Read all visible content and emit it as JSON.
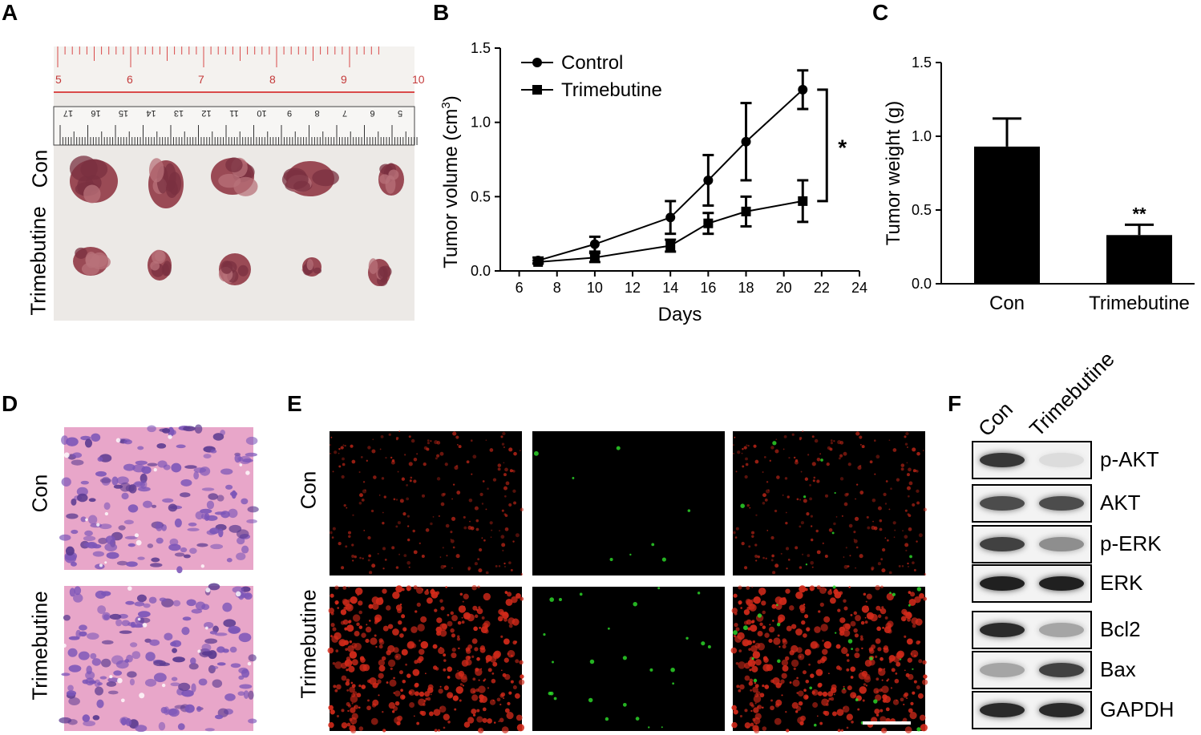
{
  "panels": {
    "a": {
      "letter": "A",
      "con_label": "Con",
      "tri_label": "Trimebutine",
      "ruler_upper": [
        "5",
        "6",
        "7",
        "8",
        "9",
        "10"
      ],
      "ruler_lower": [
        "17",
        "16",
        "15",
        "14",
        "13",
        "12",
        "11",
        "10",
        "9",
        "8",
        "7",
        "6",
        "5"
      ]
    },
    "b": {
      "letter": "B"
    },
    "c": {
      "letter": "C"
    },
    "d": {
      "letter": "D",
      "con_label": "Con",
      "tri_label": "Trimebutine"
    },
    "e": {
      "letter": "E",
      "con_label": "Con",
      "tri_label": "Trimebutine"
    },
    "f": {
      "letter": "F",
      "col_con": "Con",
      "col_tri": "Trimebutine",
      "bands": [
        {
          "label": "p-AKT",
          "con": 0.85,
          "tri": 0.1
        },
        {
          "label": "AKT",
          "con": 0.75,
          "tri": 0.75
        },
        {
          "label": "p-ERK",
          "con": 0.8,
          "tri": 0.45
        },
        {
          "label": "ERK",
          "con": 0.95,
          "tri": 0.95
        },
        {
          "label": "Bcl2",
          "con": 0.9,
          "tri": 0.35
        },
        {
          "label": "Bax",
          "con": 0.35,
          "tri": 0.8
        },
        {
          "label": "GAPDH",
          "con": 0.9,
          "tri": 0.9
        }
      ]
    }
  },
  "colors": {
    "he_pink": "#e8a6c9",
    "he_purple": "#7b55b8",
    "fluor_red": "#d42a1a",
    "fluor_green": "#2ee02a",
    "tissue": "#9a4a55"
  },
  "chart_data": [
    {
      "type": "line",
      "xlabel": "Days",
      "ylabel": "Tumor volume (cm",
      "ylabel_sup": "3",
      "ylabel_close": ")",
      "xlim": [
        5,
        24
      ],
      "ylim": [
        0,
        1.5
      ],
      "xticks": [
        "6",
        "8",
        "10",
        "12",
        "14",
        "16",
        "18",
        "20",
        "22",
        "24"
      ],
      "yticks": [
        "0.0",
        "0.5",
        "1.0",
        "1.5"
      ],
      "annotation": "*",
      "legend": "top-left",
      "series": [
        {
          "name": "Control",
          "marker": "circle",
          "x": [
            7,
            10,
            14,
            16,
            18,
            21
          ],
          "y": [
            0.07,
            0.18,
            0.36,
            0.61,
            0.87,
            1.22
          ],
          "err": [
            0.02,
            0.05,
            0.11,
            0.17,
            0.26,
            0.13
          ]
        },
        {
          "name": "Trimebutine",
          "marker": "square",
          "x": [
            7,
            10,
            14,
            16,
            18,
            21
          ],
          "y": [
            0.06,
            0.09,
            0.17,
            0.32,
            0.4,
            0.47
          ],
          "err": [
            0.01,
            0.03,
            0.04,
            0.07,
            0.1,
            0.14
          ]
        }
      ]
    },
    {
      "type": "bar",
      "categories": [
        "Con",
        "Trimebutine"
      ],
      "values": [
        0.93,
        0.33
      ],
      "err": [
        0.19,
        0.07
      ],
      "ylabel": "Tumor weight (g)",
      "ylim": [
        0,
        1.5
      ],
      "yticks": [
        "0.0",
        "0.5",
        "1.0",
        "1.5"
      ],
      "annotation": "**"
    }
  ]
}
